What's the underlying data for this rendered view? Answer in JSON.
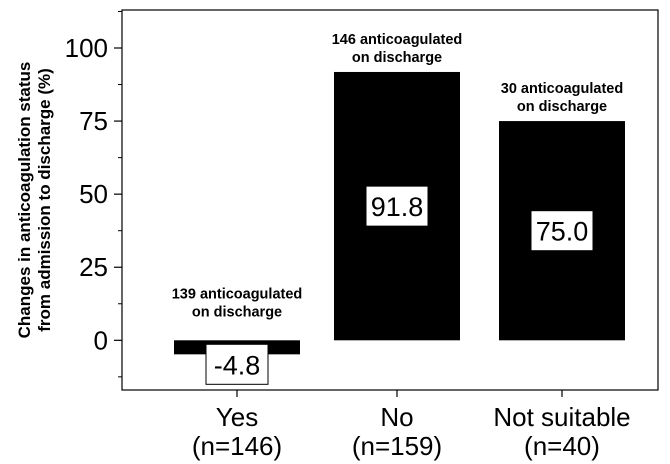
{
  "chart_data": {
    "type": "bar",
    "title": "",
    "ylabel": [
      "Changes in anticoagulation status",
      "from admission to discharge (%)"
    ],
    "xlabel": "",
    "ylim": [
      -17,
      113
    ],
    "yticks": [
      0,
      25,
      50,
      75,
      100
    ],
    "grid": false,
    "categories": [
      [
        "Yes",
        "(n=146)"
      ],
      [
        "No",
        "(n=159)"
      ],
      [
        "Not suitable",
        "(n=40)"
      ]
    ],
    "values": [
      -4.8,
      91.8,
      75.0
    ],
    "value_labels": [
      "-4.8",
      "91.8",
      "75.0"
    ],
    "annotations": [
      [
        "139 anticoagulated",
        "on discharge"
      ],
      [
        "146 anticoagulated",
        "on discharge"
      ],
      [
        "30 anticoagulated",
        "on discharge"
      ]
    ],
    "bar_color": "#000000"
  }
}
